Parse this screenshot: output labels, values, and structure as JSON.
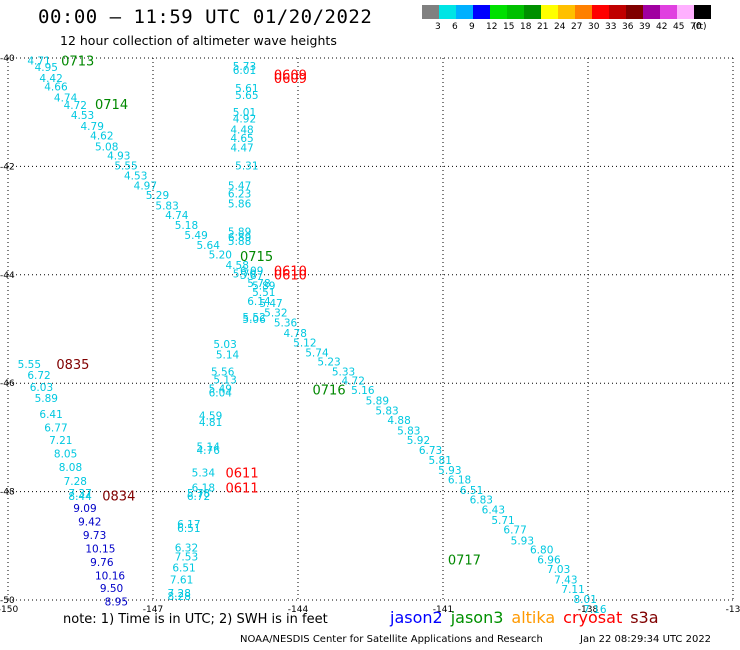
{
  "header": {
    "title": "00:00 – 11:59 UTC 01/20/2022",
    "subtitle": "12 hour collection of altimeter wave heights"
  },
  "legend": {
    "unit": "(ft)",
    "bins": [
      {
        "label": "3",
        "color": "#808080"
      },
      {
        "label": "6",
        "color": "#00e5e5"
      },
      {
        "label": "9",
        "color": "#00b0ff"
      },
      {
        "label": "12",
        "color": "#0000ff"
      },
      {
        "label": "15",
        "color": "#00e000"
      },
      {
        "label": "18",
        "color": "#00c000"
      },
      {
        "label": "21",
        "color": "#009000"
      },
      {
        "label": "24",
        "color": "#ffff00"
      },
      {
        "label": "27",
        "color": "#ffc000"
      },
      {
        "label": "30",
        "color": "#ff8000"
      },
      {
        "label": "33",
        "color": "#ff0000"
      },
      {
        "label": "36",
        "color": "#c00000"
      },
      {
        "label": "39",
        "color": "#800000"
      },
      {
        "label": "42",
        "color": "#a000a0"
      },
      {
        "label": "45",
        "color": "#e040e0"
      },
      {
        "label": "70",
        "color": "#ffb0ff"
      },
      {
        "label": "",
        "color": "#000000"
      }
    ]
  },
  "map": {
    "lon_ticks": [
      "-150",
      "-147",
      "-144",
      "-141",
      "-138",
      "-13"
    ],
    "lat_ticks": [
      "-40",
      "-42",
      "-44",
      "-46",
      "-48",
      "-50"
    ],
    "lon_range": [
      -150,
      -135
    ],
    "lat_range": [
      -50,
      -40
    ],
    "colors": {
      "cyan": "#00c8e0",
      "blue": "#0000c8",
      "green": "#008800",
      "red": "#ff0000",
      "darkred": "#800000"
    },
    "time_labels": [
      {
        "text": "0713",
        "lon": -148.9,
        "lat": -40.05,
        "color": "green"
      },
      {
        "text": "0714",
        "lon": -148.2,
        "lat": -40.85,
        "color": "green"
      },
      {
        "text": "0715",
        "lon": -145.2,
        "lat": -43.65,
        "color": "green"
      },
      {
        "text": "0716",
        "lon": -143.7,
        "lat": -46.12,
        "color": "green"
      },
      {
        "text": "0717",
        "lon": -140.9,
        "lat": -49.25,
        "color": "green"
      },
      {
        "text": "0609",
        "lon": -144.5,
        "lat": -40.3,
        "color": "red"
      },
      {
        "text": "0609",
        "lon": -144.5,
        "lat": -40.37,
        "color": "red"
      },
      {
        "text": "0610",
        "lon": -144.5,
        "lat": -43.92,
        "color": "red"
      },
      {
        "text": "0610",
        "lon": -144.5,
        "lat": -43.99,
        "color": "red"
      },
      {
        "text": "0611",
        "lon": -145.5,
        "lat": -47.65,
        "color": "red"
      },
      {
        "text": "0611",
        "lon": -145.5,
        "lat": -47.92,
        "color": "red"
      },
      {
        "text": "0835",
        "lon": -149.0,
        "lat": -45.65,
        "color": "darkred"
      },
      {
        "text": "0834",
        "lon": -148.05,
        "lat": -48.07,
        "color": "darkred"
      }
    ],
    "wave_heights": [
      {
        "text": "4.71",
        "lon": -149.6,
        "lat": -40.05,
        "color": "cyan"
      },
      {
        "text": "4.95",
        "lon": -149.45,
        "lat": -40.17,
        "color": "cyan"
      },
      {
        "text": "4.42",
        "lon": -149.35,
        "lat": -40.37,
        "color": "cyan"
      },
      {
        "text": "4.66",
        "lon": -149.25,
        "lat": -40.53,
        "color": "cyan"
      },
      {
        "text": "4.74",
        "lon": -149.05,
        "lat": -40.73,
        "color": "cyan"
      },
      {
        "text": "4.72",
        "lon": -148.85,
        "lat": -40.87,
        "color": "cyan"
      },
      {
        "text": "4.53",
        "lon": -148.7,
        "lat": -41.05,
        "color": "cyan"
      },
      {
        "text": "4.79",
        "lon": -148.5,
        "lat": -41.25,
        "color": "cyan"
      },
      {
        "text": "4.62",
        "lon": -148.3,
        "lat": -41.43,
        "color": "cyan"
      },
      {
        "text": "5.08",
        "lon": -148.2,
        "lat": -41.63,
        "color": "cyan"
      },
      {
        "text": "4.93",
        "lon": -147.95,
        "lat": -41.8,
        "color": "cyan"
      },
      {
        "text": "5.55",
        "lon": -147.8,
        "lat": -41.98,
        "color": "cyan"
      },
      {
        "text": "4.53",
        "lon": -147.6,
        "lat": -42.17,
        "color": "cyan"
      },
      {
        "text": "4.97",
        "lon": -147.4,
        "lat": -42.35,
        "color": "cyan"
      },
      {
        "text": "5.29",
        "lon": -147.15,
        "lat": -42.53,
        "color": "cyan"
      },
      {
        "text": "5.83",
        "lon": -146.95,
        "lat": -42.72,
        "color": "cyan"
      },
      {
        "text": "4.74",
        "lon": -146.75,
        "lat": -42.9,
        "color": "cyan"
      },
      {
        "text": "5.18",
        "lon": -146.55,
        "lat": -43.08,
        "color": "cyan"
      },
      {
        "text": "5.49",
        "lon": -146.35,
        "lat": -43.27,
        "color": "cyan"
      },
      {
        "text": "5.64",
        "lon": -146.1,
        "lat": -43.45,
        "color": "cyan"
      },
      {
        "text": "5.20",
        "lon": -145.85,
        "lat": -43.63,
        "color": "cyan"
      },
      {
        "text": "4.58",
        "lon": -145.5,
        "lat": -43.82,
        "color": "cyan"
      },
      {
        "text": "5.70",
        "lon": -145.35,
        "lat": -43.98,
        "color": "cyan"
      },
      {
        "text": "5.78",
        "lon": -145.05,
        "lat": -44.15,
        "color": "cyan"
      },
      {
        "text": "5.51",
        "lon": -144.95,
        "lat": -44.32,
        "color": "cyan"
      },
      {
        "text": "5.47",
        "lon": -144.8,
        "lat": -44.52,
        "color": "cyan"
      },
      {
        "text": "5.32",
        "lon": -144.7,
        "lat": -44.7,
        "color": "cyan"
      },
      {
        "text": "5.36",
        "lon": -144.5,
        "lat": -44.88,
        "color": "cyan"
      },
      {
        "text": "4.78",
        "lon": -144.3,
        "lat": -45.07,
        "color": "cyan"
      },
      {
        "text": "5.12",
        "lon": -144.1,
        "lat": -45.25,
        "color": "cyan"
      },
      {
        "text": "5.74",
        "lon": -143.85,
        "lat": -45.43,
        "color": "cyan"
      },
      {
        "text": "5.23",
        "lon": -143.6,
        "lat": -45.6,
        "color": "cyan"
      },
      {
        "text": "5.33",
        "lon": -143.3,
        "lat": -45.78,
        "color": "cyan"
      },
      {
        "text": "4.72",
        "lon": -143.1,
        "lat": -45.95,
        "color": "cyan"
      },
      {
        "text": "5.16",
        "lon": -142.9,
        "lat": -46.13,
        "color": "cyan"
      },
      {
        "text": "5.89",
        "lon": -142.6,
        "lat": -46.32,
        "color": "cyan"
      },
      {
        "text": "5.83",
        "lon": -142.4,
        "lat": -46.5,
        "color": "cyan"
      },
      {
        "text": "4.88",
        "lon": -142.15,
        "lat": -46.68,
        "color": "cyan"
      },
      {
        "text": "5.83",
        "lon": -141.95,
        "lat": -46.87,
        "color": "cyan"
      },
      {
        "text": "5.92",
        "lon": -141.75,
        "lat": -47.05,
        "color": "cyan"
      },
      {
        "text": "6.73",
        "lon": -141.5,
        "lat": -47.23,
        "color": "cyan"
      },
      {
        "text": "5.81",
        "lon": -141.3,
        "lat": -47.42,
        "color": "cyan"
      },
      {
        "text": "5.93",
        "lon": -141.1,
        "lat": -47.6,
        "color": "cyan"
      },
      {
        "text": "6.18",
        "lon": -140.9,
        "lat": -47.78,
        "color": "cyan"
      },
      {
        "text": "6.51",
        "lon": -140.65,
        "lat": -47.97,
        "color": "cyan"
      },
      {
        "text": "6.83",
        "lon": -140.45,
        "lat": -48.15,
        "color": "cyan"
      },
      {
        "text": "6.43",
        "lon": -140.2,
        "lat": -48.33,
        "color": "cyan"
      },
      {
        "text": "5.71",
        "lon": -140.0,
        "lat": -48.52,
        "color": "cyan"
      },
      {
        "text": "6.77",
        "lon": -139.75,
        "lat": -48.7,
        "color": "cyan"
      },
      {
        "text": "5.93",
        "lon": -139.6,
        "lat": -48.9,
        "color": "cyan"
      },
      {
        "text": "6.80",
        "lon": -139.2,
        "lat": -49.07,
        "color": "cyan"
      },
      {
        "text": "6.96",
        "lon": -139.05,
        "lat": -49.25,
        "color": "cyan"
      },
      {
        "text": "7.03",
        "lon": -138.85,
        "lat": -49.43,
        "color": "cyan"
      },
      {
        "text": "7.43",
        "lon": -138.7,
        "lat": -49.62,
        "color": "cyan"
      },
      {
        "text": "7.11",
        "lon": -138.55,
        "lat": -49.8,
        "color": "cyan"
      },
      {
        "text": "8.01",
        "lon": -138.3,
        "lat": -49.98,
        "color": "cyan"
      },
      {
        "text": "7.16",
        "lon": -138.1,
        "lat": -50.17,
        "color": "cyan"
      },
      {
        "text": "5.73",
        "lon": -145.35,
        "lat": -40.15,
        "color": "cyan"
      },
      {
        "text": "6.01",
        "lon": -145.35,
        "lat": -40.22,
        "color": "cyan"
      },
      {
        "text": "5.61",
        "lon": -145.3,
        "lat": -40.55,
        "color": "cyan"
      },
      {
        "text": "5.65",
        "lon": -145.3,
        "lat": -40.68,
        "color": "cyan"
      },
      {
        "text": "5.01",
        "lon": -145.35,
        "lat": -41.0,
        "color": "cyan"
      },
      {
        "text": "4.92",
        "lon": -145.35,
        "lat": -41.12,
        "color": "cyan"
      },
      {
        "text": "4.48",
        "lon": -145.4,
        "lat": -41.32,
        "color": "cyan"
      },
      {
        "text": "4.65",
        "lon": -145.4,
        "lat": -41.48,
        "color": "cyan"
      },
      {
        "text": "4.47",
        "lon": -145.4,
        "lat": -41.65,
        "color": "cyan"
      },
      {
        "text": "5.31",
        "lon": -145.3,
        "lat": -41.98,
        "color": "cyan"
      },
      {
        "text": "5.47",
        "lon": -145.45,
        "lat": -42.35,
        "color": "cyan"
      },
      {
        "text": "6.23",
        "lon": -145.45,
        "lat": -42.5,
        "color": "cyan"
      },
      {
        "text": "5.86",
        "lon": -145.45,
        "lat": -42.68,
        "color": "cyan"
      },
      {
        "text": "5.89",
        "lon": -145.45,
        "lat": -43.2,
        "color": "cyan"
      },
      {
        "text": "6.89",
        "lon": -145.45,
        "lat": -43.3,
        "color": "cyan"
      },
      {
        "text": "5.88",
        "lon": -145.45,
        "lat": -43.38,
        "color": "cyan"
      },
      {
        "text": "6.09",
        "lon": -145.2,
        "lat": -43.92,
        "color": "cyan"
      },
      {
        "text": "5.87",
        "lon": -145.2,
        "lat": -44.0,
        "color": "cyan"
      },
      {
        "text": "5.89",
        "lon": -144.95,
        "lat": -44.2,
        "color": "cyan"
      },
      {
        "text": "6.14",
        "lon": -145.05,
        "lat": -44.48,
        "color": "cyan"
      },
      {
        "text": "5.52",
        "lon": -145.15,
        "lat": -44.78,
        "color": "cyan"
      },
      {
        "text": "5.06",
        "lon": -145.15,
        "lat": -44.82,
        "color": "cyan"
      },
      {
        "text": "5.03",
        "lon": -145.75,
        "lat": -45.28,
        "color": "cyan"
      },
      {
        "text": "5.14",
        "lon": -145.7,
        "lat": -45.47,
        "color": "cyan"
      },
      {
        "text": "5.56",
        "lon": -145.8,
        "lat": -45.78,
        "color": "cyan"
      },
      {
        "text": "5.13",
        "lon": -145.75,
        "lat": -45.93,
        "color": "cyan"
      },
      {
        "text": "5.49",
        "lon": -145.85,
        "lat": -46.1,
        "color": "cyan"
      },
      {
        "text": "6.04",
        "lon": -145.85,
        "lat": -46.17,
        "color": "cyan"
      },
      {
        "text": "4.59",
        "lon": -146.05,
        "lat": -46.6,
        "color": "cyan"
      },
      {
        "text": "4.81",
        "lon": -146.05,
        "lat": -46.72,
        "color": "cyan"
      },
      {
        "text": "5.14",
        "lon": -146.1,
        "lat": -47.17,
        "color": "cyan"
      },
      {
        "text": "4.76",
        "lon": -146.1,
        "lat": -47.23,
        "color": "cyan"
      },
      {
        "text": "5.34",
        "lon": -146.2,
        "lat": -47.65,
        "color": "cyan"
      },
      {
        "text": "6.18",
        "lon": -146.2,
        "lat": -47.92,
        "color": "cyan"
      },
      {
        "text": "5.78",
        "lon": -146.3,
        "lat": -48.03,
        "color": "cyan"
      },
      {
        "text": "6.72",
        "lon": -146.3,
        "lat": -48.08,
        "color": "cyan"
      },
      {
        "text": "6.17",
        "lon": -146.5,
        "lat": -48.6,
        "color": "cyan"
      },
      {
        "text": "6.51",
        "lon": -146.5,
        "lat": -48.67,
        "color": "cyan"
      },
      {
        "text": "6.32",
        "lon": -146.55,
        "lat": -49.03,
        "color": "cyan"
      },
      {
        "text": "7.53",
        "lon": -146.55,
        "lat": -49.2,
        "color": "cyan"
      },
      {
        "text": "6.51",
        "lon": -146.6,
        "lat": -49.4,
        "color": "cyan"
      },
      {
        "text": "7.61",
        "lon": -146.65,
        "lat": -49.62,
        "color": "cyan"
      },
      {
        "text": "7.28",
        "lon": -146.7,
        "lat": -49.87,
        "color": "cyan"
      },
      {
        "text": "8.28",
        "lon": -146.7,
        "lat": -49.93,
        "color": "cyan"
      },
      {
        "text": "5.55",
        "lon": -149.8,
        "lat": -45.65,
        "color": "cyan"
      },
      {
        "text": "6.72",
        "lon": -149.6,
        "lat": -45.85,
        "color": "cyan"
      },
      {
        "text": "6.03",
        "lon": -149.55,
        "lat": -46.07,
        "color": "cyan"
      },
      {
        "text": "5.89",
        "lon": -149.45,
        "lat": -46.27,
        "color": "cyan"
      },
      {
        "text": "6.41",
        "lon": -149.35,
        "lat": -46.57,
        "color": "cyan"
      },
      {
        "text": "6.77",
        "lon": -149.25,
        "lat": -46.82,
        "color": "cyan"
      },
      {
        "text": "7.21",
        "lon": -149.15,
        "lat": -47.05,
        "color": "cyan"
      },
      {
        "text": "8.05",
        "lon": -149.05,
        "lat": -47.3,
        "color": "cyan"
      },
      {
        "text": "8.08",
        "lon": -148.95,
        "lat": -47.55,
        "color": "cyan"
      },
      {
        "text": "7.28",
        "lon": -148.85,
        "lat": -47.8,
        "color": "cyan"
      },
      {
        "text": "7.37",
        "lon": -148.75,
        "lat": -48.03,
        "color": "cyan"
      },
      {
        "text": "8.44",
        "lon": -148.75,
        "lat": -48.08,
        "color": "cyan"
      },
      {
        "text": "9.09",
        "lon": -148.65,
        "lat": -48.3,
        "color": "blue"
      },
      {
        "text": "9.42",
        "lon": -148.55,
        "lat": -48.55,
        "color": "blue"
      },
      {
        "text": "9.73",
        "lon": -148.45,
        "lat": -48.8,
        "color": "blue"
      },
      {
        "text": "10.15",
        "lon": -148.4,
        "lat": -49.05,
        "color": "blue"
      },
      {
        "text": "9.76",
        "lon": -148.3,
        "lat": -49.3,
        "color": "blue"
      },
      {
        "text": "10.16",
        "lon": -148.2,
        "lat": -49.55,
        "color": "blue"
      },
      {
        "text": "9.50",
        "lon": -148.1,
        "lat": -49.78,
        "color": "blue"
      },
      {
        "text": "8.95",
        "lon": -148.0,
        "lat": -50.03,
        "color": "blue"
      }
    ]
  },
  "footer": {
    "note": "note: 1) Time is in UTC; 2) SWH is in feet",
    "satellites": [
      {
        "name": "jason2",
        "color": "#0000ff"
      },
      {
        "name": "jason3",
        "color": "#009000"
      },
      {
        "name": "altika",
        "color": "#ff9900"
      },
      {
        "name": "cryosat",
        "color": "#ff0000"
      },
      {
        "name": "s3a",
        "color": "#800000"
      }
    ],
    "credit": "NOAA/NESDIS Center for Satellite Applications and Research",
    "timestamp": "Jan 22 08:29:34 UTC 2022"
  }
}
